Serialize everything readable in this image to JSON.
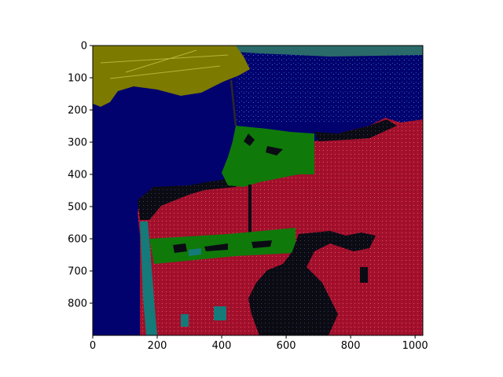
{
  "colors": {
    "water": "#02026e",
    "water_dots": "#1c4fb0",
    "north_land": "#7d7a00",
    "urban_red": "#a4102c",
    "urban_red_dark": "#8e0f27",
    "park_green": "#0f7a0a",
    "beach_teal": "#157a7a",
    "dark_area": "#0b0b14",
    "bridge": "#2a2a2a"
  },
  "axes": {
    "x_ticks": [
      "0",
      "200",
      "400",
      "600",
      "800",
      "1000"
    ],
    "x_values": [
      0,
      200,
      400,
      600,
      800,
      1000
    ],
    "y_ticks": [
      "0",
      "100",
      "200",
      "300",
      "400",
      "500",
      "600",
      "700",
      "800"
    ],
    "y_values": [
      0,
      100,
      200,
      300,
      400,
      500,
      600,
      700,
      800
    ],
    "x_range": [
      0,
      1024
    ],
    "y_range": [
      0,
      900
    ]
  }
}
